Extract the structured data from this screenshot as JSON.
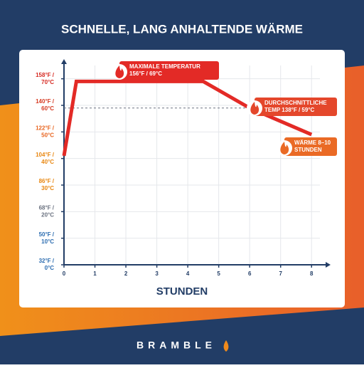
{
  "chart_data": {
    "type": "line",
    "title": "SCHNELLE, LANG ANHALTENDE WÄRME",
    "x_label": "STUNDEN",
    "brand": "BRAMBLE",
    "x": [
      0,
      0.4,
      4.5,
      6,
      8
    ],
    "series": [
      {
        "color": "#e32a26",
        "values": [
          41,
          69,
          69,
          59,
          49
        ]
      }
    ],
    "xlim": [
      0,
      8.5
    ],
    "xticks": [
      0,
      1,
      2,
      3,
      4,
      5,
      6,
      7,
      8
    ],
    "ylim": [
      0,
      75
    ],
    "yticks": [
      {
        "value": 0,
        "label": [
          "32°F /",
          "0°C"
        ]
      },
      {
        "value": 10,
        "label": [
          "50°F /",
          "10°C"
        ]
      },
      {
        "value": 20,
        "label": [
          "68°F /",
          "20°C"
        ]
      },
      {
        "value": 30,
        "label": [
          "86°F /",
          "30°C"
        ]
      },
      {
        "value": 40,
        "label": [
          "104°F /",
          "40°C"
        ]
      },
      {
        "value": 50,
        "label": [
          "122°F /",
          "50°C"
        ]
      },
      {
        "value": 60,
        "label": [
          "140°F /",
          "60°C"
        ]
      },
      {
        "value": 70,
        "label": [
          "158°F /",
          "70°C"
        ]
      }
    ],
    "ytick_colors": [
      "#2b6cb0",
      "#2b6cb0",
      "#6b7280",
      "#e8860f",
      "#e8860f",
      "#e8641f",
      "#d63a22",
      "#d62a22"
    ],
    "grid": true,
    "reference_line": 59,
    "annotations": [
      {
        "lines": [
          "MAXIMALE TEMPERATUR",
          "156°F / 69°C"
        ],
        "color": "#e32a26"
      },
      {
        "lines": [
          "DURCHSCHNITTLICHE",
          "TEMP 138°F / 59°C"
        ],
        "color": "#e4472b"
      },
      {
        "lines": [
          "WÄRME 8–10",
          "STUNDEN"
        ],
        "color": "#ea6a25"
      }
    ]
  }
}
